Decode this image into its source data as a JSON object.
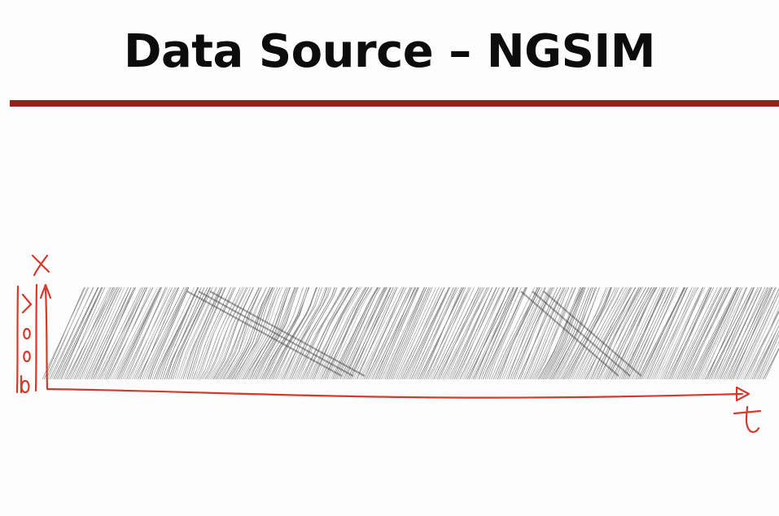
{
  "title": "Data Source – NGSIM",
  "colors": {
    "rule": "#9a1f1a",
    "annotation": "#d43a2c",
    "trajectory": "#9c9c9c",
    "background": "#fdfdfd"
  },
  "diagram": {
    "description_free": true,
    "x_axis_handwritten": "t",
    "y_axis_handwritten": "x"
  }
}
